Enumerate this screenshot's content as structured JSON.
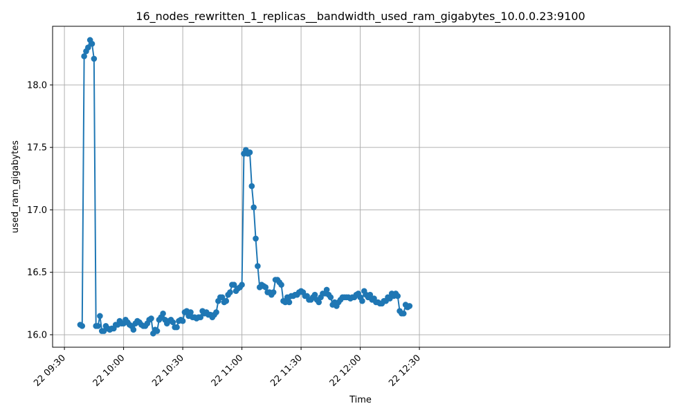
{
  "chart_data": {
    "type": "line",
    "title": "16_nodes_rewritten_1_replicas__bandwidth_used_ram_gigabytes_10.0.0.23:9100",
    "xlabel": "Time",
    "ylabel": "used_ram_gigabytes",
    "grid": true,
    "color": "#1f77b4",
    "xlim_minutes": [
      -6,
      307
    ],
    "ylim": [
      15.9,
      18.47
    ],
    "x_ticks": [
      {
        "minute": 0,
        "label": "22 09:30"
      },
      {
        "minute": 30,
        "label": "22 10:00"
      },
      {
        "minute": 60,
        "label": "22 10:30"
      },
      {
        "minute": 90,
        "label": "22 11:00"
      },
      {
        "minute": 120,
        "label": "22 11:30"
      },
      {
        "minute": 150,
        "label": "22 12:00"
      },
      {
        "minute": 180,
        "label": "22 12:30"
      }
    ],
    "y_ticks": [
      {
        "value": 16.0,
        "label": "16.0"
      },
      {
        "value": 16.5,
        "label": "16.5"
      },
      {
        "value": 17.0,
        "label": "17.0"
      },
      {
        "value": 17.5,
        "label": "17.5"
      },
      {
        "value": 18.0,
        "label": "18.0"
      }
    ],
    "series": [
      {
        "x_start_minute": 8,
        "x_step_minutes": 1,
        "values": [
          16.08,
          16.07,
          18.23,
          18.27,
          18.3,
          18.36,
          18.33,
          18.21,
          16.07,
          16.07,
          16.15,
          16.03,
          16.03,
          16.07,
          16.05,
          16.04,
          16.05,
          16.05,
          16.08,
          16.08,
          16.11,
          16.09,
          16.09,
          16.12,
          16.1,
          16.08,
          16.07,
          16.04,
          16.09,
          16.11,
          16.1,
          16.08,
          16.07,
          16.07,
          16.09,
          16.12,
          16.13,
          16.01,
          16.04,
          16.03,
          16.12,
          16.14,
          16.17,
          16.12,
          16.09,
          16.11,
          16.12,
          16.1,
          16.06,
          16.06,
          16.11,
          16.12,
          16.11,
          16.18,
          16.19,
          16.15,
          16.18,
          16.14,
          16.14,
          16.13,
          16.14,
          16.14,
          16.19,
          16.17,
          16.18,
          16.16,
          16.16,
          16.14,
          16.16,
          16.18,
          16.27,
          16.3,
          16.3,
          16.26,
          16.27,
          16.32,
          16.34,
          16.4,
          16.4,
          16.35,
          16.37,
          16.38,
          16.4,
          17.45,
          17.48,
          17.45,
          17.46,
          17.19,
          17.02,
          16.77,
          16.55,
          16.38,
          16.4,
          16.39,
          16.38,
          16.34,
          16.34,
          16.32,
          16.34,
          16.44,
          16.44,
          16.42,
          16.4,
          16.27,
          16.26,
          16.3,
          16.26,
          16.31,
          16.31,
          16.32,
          16.32,
          16.34,
          16.35,
          16.34,
          16.31,
          16.31,
          16.28,
          16.28,
          16.3,
          16.32,
          16.28,
          16.26,
          16.3,
          16.33,
          16.33,
          16.36,
          16.32,
          16.3,
          16.24,
          16.26,
          16.23,
          16.26,
          16.28,
          16.3,
          16.3,
          16.3,
          16.3,
          16.29,
          16.3,
          16.3,
          16.32,
          16.33,
          16.3,
          16.27,
          16.35,
          16.32,
          16.3,
          16.32,
          16.28,
          16.29,
          16.26,
          16.26,
          16.25,
          16.25,
          16.27,
          16.27,
          16.3,
          16.29,
          16.33,
          16.31,
          16.33,
          16.31,
          16.19,
          16.17,
          16.17,
          16.24,
          16.22,
          16.23
        ]
      }
    ]
  }
}
